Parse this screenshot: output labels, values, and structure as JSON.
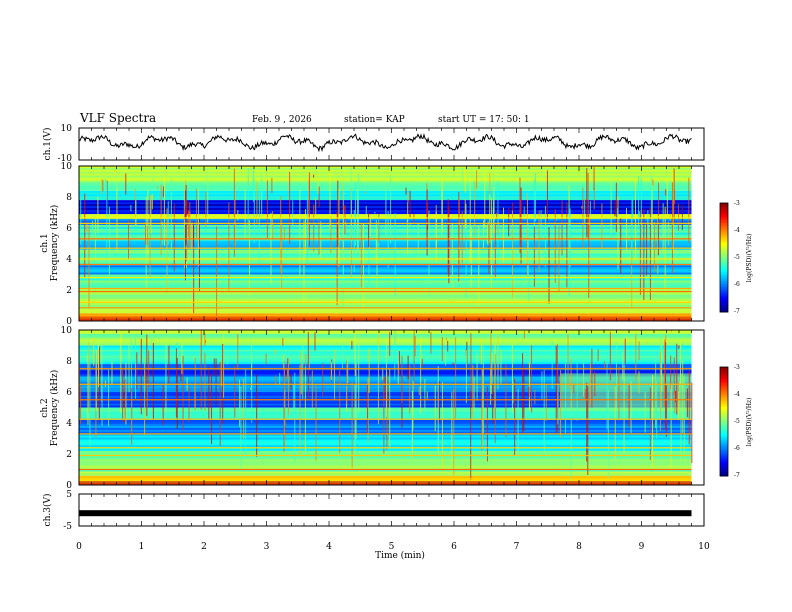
{
  "header": {
    "title": "VLF Spectra",
    "date": "Feb. 9 , 2026",
    "station": "station= KAP",
    "start": "start  UT =   17: 50: 1"
  },
  "chart_data": [
    {
      "id": "ch1-waveform",
      "type": "line",
      "ylabel": "ch.1(V)",
      "ylim": [
        -10,
        10
      ],
      "yticks": [
        "10",
        "-10"
      ],
      "xlim": [
        0,
        10
      ],
      "note": "noisy voltage trace oscillating roughly between -4 and +6 V over 0-9.8 min"
    },
    {
      "id": "ch1-spectrogram",
      "type": "heatmap",
      "ylabel": "Frequency (kHz)",
      "channel_label": "ch.1",
      "ylim": [
        0,
        10
      ],
      "yticks": [
        "0",
        "2",
        "4",
        "6",
        "8",
        "10"
      ],
      "xlim": [
        0,
        10
      ],
      "data_xmax": 9.8,
      "colorbar": {
        "label": "log(PSD)(V²/Hz)",
        "range": [
          -7,
          -3
        ],
        "ticks": [
          "-3",
          "-4",
          "-5",
          "-6",
          "-7"
        ]
      },
      "bands": [
        {
          "from": 0.0,
          "to": 0.5,
          "level": -4.2
        },
        {
          "from": 0.5,
          "to": 2.1,
          "level": -4.9
        },
        {
          "from": 2.1,
          "to": 3.0,
          "level": -5.2
        },
        {
          "from": 3.0,
          "to": 3.6,
          "level": -5.9
        },
        {
          "from": 3.6,
          "to": 4.6,
          "level": -5.1
        },
        {
          "from": 4.6,
          "to": 5.2,
          "level": -5.7
        },
        {
          "from": 5.2,
          "to": 6.2,
          "level": -5.3
        },
        {
          "from": 6.2,
          "to": 6.6,
          "level": -6.0
        },
        {
          "from": 6.6,
          "to": 6.9,
          "level": -4.6
        },
        {
          "from": 6.9,
          "to": 7.8,
          "level": -6.6
        },
        {
          "from": 7.8,
          "to": 8.4,
          "level": -5.6
        },
        {
          "from": 8.4,
          "to": 9.0,
          "level": -5.0
        },
        {
          "from": 9.0,
          "to": 10.0,
          "level": -4.8
        }
      ],
      "lines_khz": [
        0.3,
        0.85,
        1.2,
        1.9,
        2.1,
        2.8,
        3.65,
        4.0,
        4.7,
        5.3,
        6.3,
        6.65
      ]
    },
    {
      "id": "ch2-spectrogram",
      "type": "heatmap",
      "ylabel": "Frequency (kHz)",
      "channel_label": "ch.2",
      "ylim": [
        0,
        10
      ],
      "yticks": [
        "0",
        "2",
        "4",
        "6",
        "8",
        "10"
      ],
      "xlim": [
        0,
        10
      ],
      "data_xmax": 9.8,
      "colorbar": {
        "label": "log(PSD)(V²/Hz)",
        "range": [
          -7,
          -3
        ],
        "ticks": [
          "-3",
          "-4",
          "-5",
          "-6",
          "-7"
        ]
      },
      "bands": [
        {
          "from": 0.0,
          "to": 0.6,
          "level": -4.3
        },
        {
          "from": 0.6,
          "to": 2.2,
          "level": -5.0
        },
        {
          "from": 2.2,
          "to": 3.3,
          "level": -5.5
        },
        {
          "from": 3.3,
          "to": 4.2,
          "level": -6.0
        },
        {
          "from": 4.2,
          "to": 5.0,
          "level": -5.3
        },
        {
          "from": 5.0,
          "to": 6.0,
          "level": -6.1
        },
        {
          "from": 6.0,
          "to": 7.0,
          "level": -5.8
        },
        {
          "from": 7.0,
          "to": 7.8,
          "level": -6.3
        },
        {
          "from": 7.8,
          "to": 9.0,
          "level": -5.4
        },
        {
          "from": 9.0,
          "to": 10.0,
          "level": -4.9
        }
      ],
      "lines_khz": [
        0.4,
        1.0,
        1.9,
        2.4,
        3.3,
        4.25,
        5.5,
        6.5,
        7.5
      ],
      "shift_after_min": 7.7
    },
    {
      "id": "ch3-waveform",
      "type": "line",
      "ylabel": "ch.3(V)",
      "ylim": [
        -5,
        5
      ],
      "yticks": [
        "5",
        "-5"
      ],
      "xlim": [
        0,
        10
      ],
      "xticks": [
        "0",
        "1",
        "2",
        "3",
        "4",
        "5",
        "6",
        "7",
        "8",
        "9",
        "10"
      ],
      "xlabel": "Time  (min)",
      "note": "flat thick trace near -1 V from 0 to 9.8 min"
    }
  ]
}
